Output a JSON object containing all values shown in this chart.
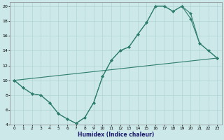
{
  "xlabel": "Humidex (Indice chaleur)",
  "bg_color": "#cce8e8",
  "grid_color": "#b0d4d4",
  "line_color": "#2e7d6e",
  "xlim": [
    -0.5,
    23.5
  ],
  "ylim": [
    4,
    20.5
  ],
  "xticks": [
    0,
    1,
    2,
    3,
    4,
    5,
    6,
    7,
    8,
    9,
    10,
    11,
    12,
    13,
    14,
    15,
    16,
    17,
    18,
    19,
    20,
    21,
    22,
    23
  ],
  "yticks": [
    4,
    6,
    8,
    10,
    12,
    14,
    16,
    18,
    20
  ],
  "line1_x": [
    0,
    1,
    2,
    3,
    4,
    5,
    6,
    7,
    8,
    9,
    10,
    11,
    12,
    13,
    14,
    15,
    16,
    17,
    18,
    19,
    20,
    21,
    22,
    23
  ],
  "line1_y": [
    10,
    9,
    8.2,
    8,
    7,
    5.5,
    4.8,
    4.2,
    5,
    7,
    10.5,
    12.7,
    14,
    14.5,
    16.2,
    17.8,
    20,
    20,
    19.3,
    20,
    19,
    15,
    14,
    13
  ],
  "line2_x": [
    0,
    1,
    2,
    3,
    4,
    5,
    6,
    7,
    8,
    9,
    10,
    11,
    12,
    13,
    14,
    15,
    16,
    17,
    18,
    19,
    20,
    21,
    22,
    23
  ],
  "line2_y": [
    10,
    9,
    8.2,
    8,
    7,
    5.5,
    4.8,
    4.2,
    5,
    7,
    10.5,
    12.7,
    14,
    14.5,
    16.2,
    17.8,
    20,
    20,
    19.3,
    20,
    18.3,
    15,
    14,
    13
  ],
  "line3_x": [
    0,
    23
  ],
  "line3_y": [
    10,
    13
  ]
}
